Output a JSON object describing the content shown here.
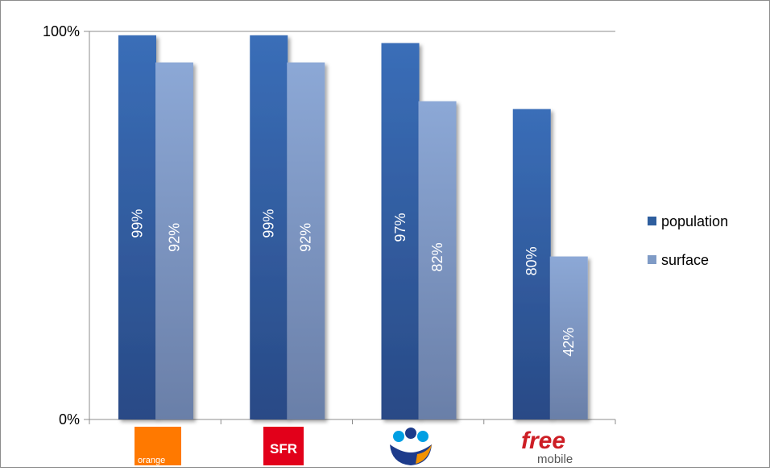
{
  "chart_data": {
    "type": "bar",
    "categories": [
      "orange",
      "SFR",
      "Bouygues Telecom",
      "Free mobile"
    ],
    "series": [
      {
        "name": "population",
        "values": [
          99,
          99,
          97,
          80
        ],
        "color": "#2e5e9e"
      },
      {
        "name": "surface",
        "values": [
          92,
          92,
          82,
          42
        ],
        "color": "#7f9bc6"
      }
    ],
    "data_labels": [
      [
        "99%",
        "99%",
        "97%",
        "80%"
      ],
      [
        "92%",
        "92%",
        "82%",
        "42%"
      ]
    ],
    "yticks": [
      "0%",
      "100%"
    ],
    "ylim": [
      0,
      100
    ],
    "grid": true,
    "legend_position": "right",
    "logos": {
      "orange": {
        "icon": "orange-logo",
        "text": "orange",
        "bg": "#ff7900"
      },
      "sfr": {
        "icon": "sfr-logo",
        "text": "SFR",
        "bg": "#e2001a"
      },
      "bouygues": {
        "icon": "bouygues-telecom-logo",
        "colors": [
          "#009fe3",
          "#1d3b8b",
          "#f39200"
        ]
      },
      "free": {
        "icon": "free-mobile-logo",
        "text": "free",
        "subtext": "mobile",
        "color": "#cd1e25"
      }
    }
  }
}
